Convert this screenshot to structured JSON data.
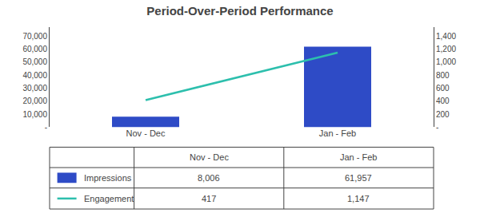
{
  "chart_data": {
    "type": "bar",
    "title": "Period-Over-Period Performance",
    "categories": [
      "Nov - Dec",
      "Jan - Feb"
    ],
    "series": [
      {
        "name": "Impressions",
        "type": "bar",
        "color": "#2e4bc6",
        "values": [
          8006,
          61957
        ],
        "value_labels": [
          "8,006",
          "61,957"
        ]
      },
      {
        "name": "Engagement",
        "type": "line",
        "axis": "y2",
        "color": "#2dbfad",
        "values": [
          417,
          1147
        ],
        "value_labels": [
          "417",
          "1,147"
        ]
      }
    ],
    "ylim": [
      0,
      77000
    ],
    "yticks": [
      {
        "value": 0,
        "label": "-"
      },
      {
        "value": 10000,
        "label": "10,000"
      },
      {
        "value": 20000,
        "label": "20,000"
      },
      {
        "value": 30000,
        "label": "30,000"
      },
      {
        "value": 40000,
        "label": "40,000"
      },
      {
        "value": 50000,
        "label": "50,000"
      },
      {
        "value": 60000,
        "label": "60,000"
      },
      {
        "value": 70000,
        "label": "70,000"
      }
    ],
    "y2lim": [
      0,
      1540
    ],
    "y2ticks": [
      {
        "value": 0,
        "label": "-"
      },
      200,
      400,
      600,
      800,
      {
        "value": 1000,
        "label": "1,000"
      },
      {
        "value": 1200,
        "label": "1,200"
      },
      {
        "value": 1400,
        "label": "1,400"
      }
    ],
    "grid": false
  }
}
